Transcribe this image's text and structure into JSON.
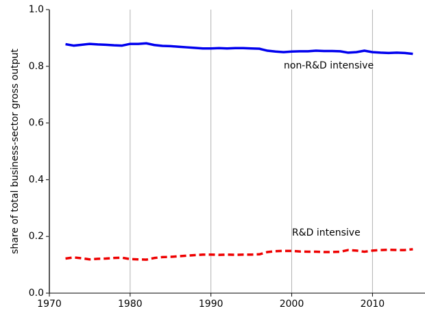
{
  "chart_data": {
    "type": "line",
    "ylabel": "share of total business-sector gross output",
    "x": [
      1972,
      1973,
      1974,
      1975,
      1976,
      1977,
      1978,
      1979,
      1980,
      1981,
      1982,
      1983,
      1984,
      1985,
      1986,
      1987,
      1988,
      1989,
      1990,
      1991,
      1992,
      1993,
      1994,
      1995,
      1996,
      1997,
      1998,
      1999,
      2000,
      2001,
      2002,
      2003,
      2004,
      2005,
      2006,
      2007,
      2008,
      2009,
      2010,
      2011,
      2012,
      2013,
      2014,
      2015
    ],
    "series": [
      {
        "name": "non-R&D intensive",
        "color": "#0000ee",
        "dash": "solid",
        "values": [
          0.878,
          0.873,
          0.876,
          0.879,
          0.877,
          0.876,
          0.874,
          0.873,
          0.879,
          0.879,
          0.881,
          0.875,
          0.872,
          0.871,
          0.869,
          0.867,
          0.865,
          0.863,
          0.863,
          0.864,
          0.863,
          0.864,
          0.864,
          0.863,
          0.862,
          0.855,
          0.852,
          0.85,
          0.852,
          0.853,
          0.853,
          0.855,
          0.854,
          0.854,
          0.853,
          0.848,
          0.85,
          0.855,
          0.85,
          0.848,
          0.847,
          0.848,
          0.847,
          0.844
        ]
      },
      {
        "name": "R&D intensive",
        "color": "#ee0000",
        "dash": "dashed",
        "values": [
          0.122,
          0.126,
          0.123,
          0.119,
          0.121,
          0.122,
          0.124,
          0.125,
          0.12,
          0.119,
          0.118,
          0.124,
          0.127,
          0.128,
          0.13,
          0.132,
          0.134,
          0.136,
          0.136,
          0.135,
          0.136,
          0.135,
          0.136,
          0.136,
          0.137,
          0.145,
          0.148,
          0.149,
          0.149,
          0.147,
          0.146,
          0.146,
          0.145,
          0.145,
          0.146,
          0.152,
          0.15,
          0.146,
          0.15,
          0.152,
          0.153,
          0.152,
          0.152,
          0.155
        ]
      }
    ],
    "xlim": [
      1970,
      2016.5
    ],
    "xticks": [
      1970,
      1980,
      1990,
      2000,
      2010
    ],
    "ylim": [
      0,
      1
    ],
    "yticks": [
      {
        "value": 0,
        "label": "0.0"
      },
      {
        "value": 0.2,
        "label": "0.2"
      },
      {
        "value": 0.4,
        "label": "0.4"
      },
      {
        "value": 0.6,
        "label": "0.6"
      },
      {
        "value": 0.8,
        "label": "0.8"
      },
      {
        "value": 1,
        "label": "1.0"
      }
    ],
    "grid": "x"
  }
}
